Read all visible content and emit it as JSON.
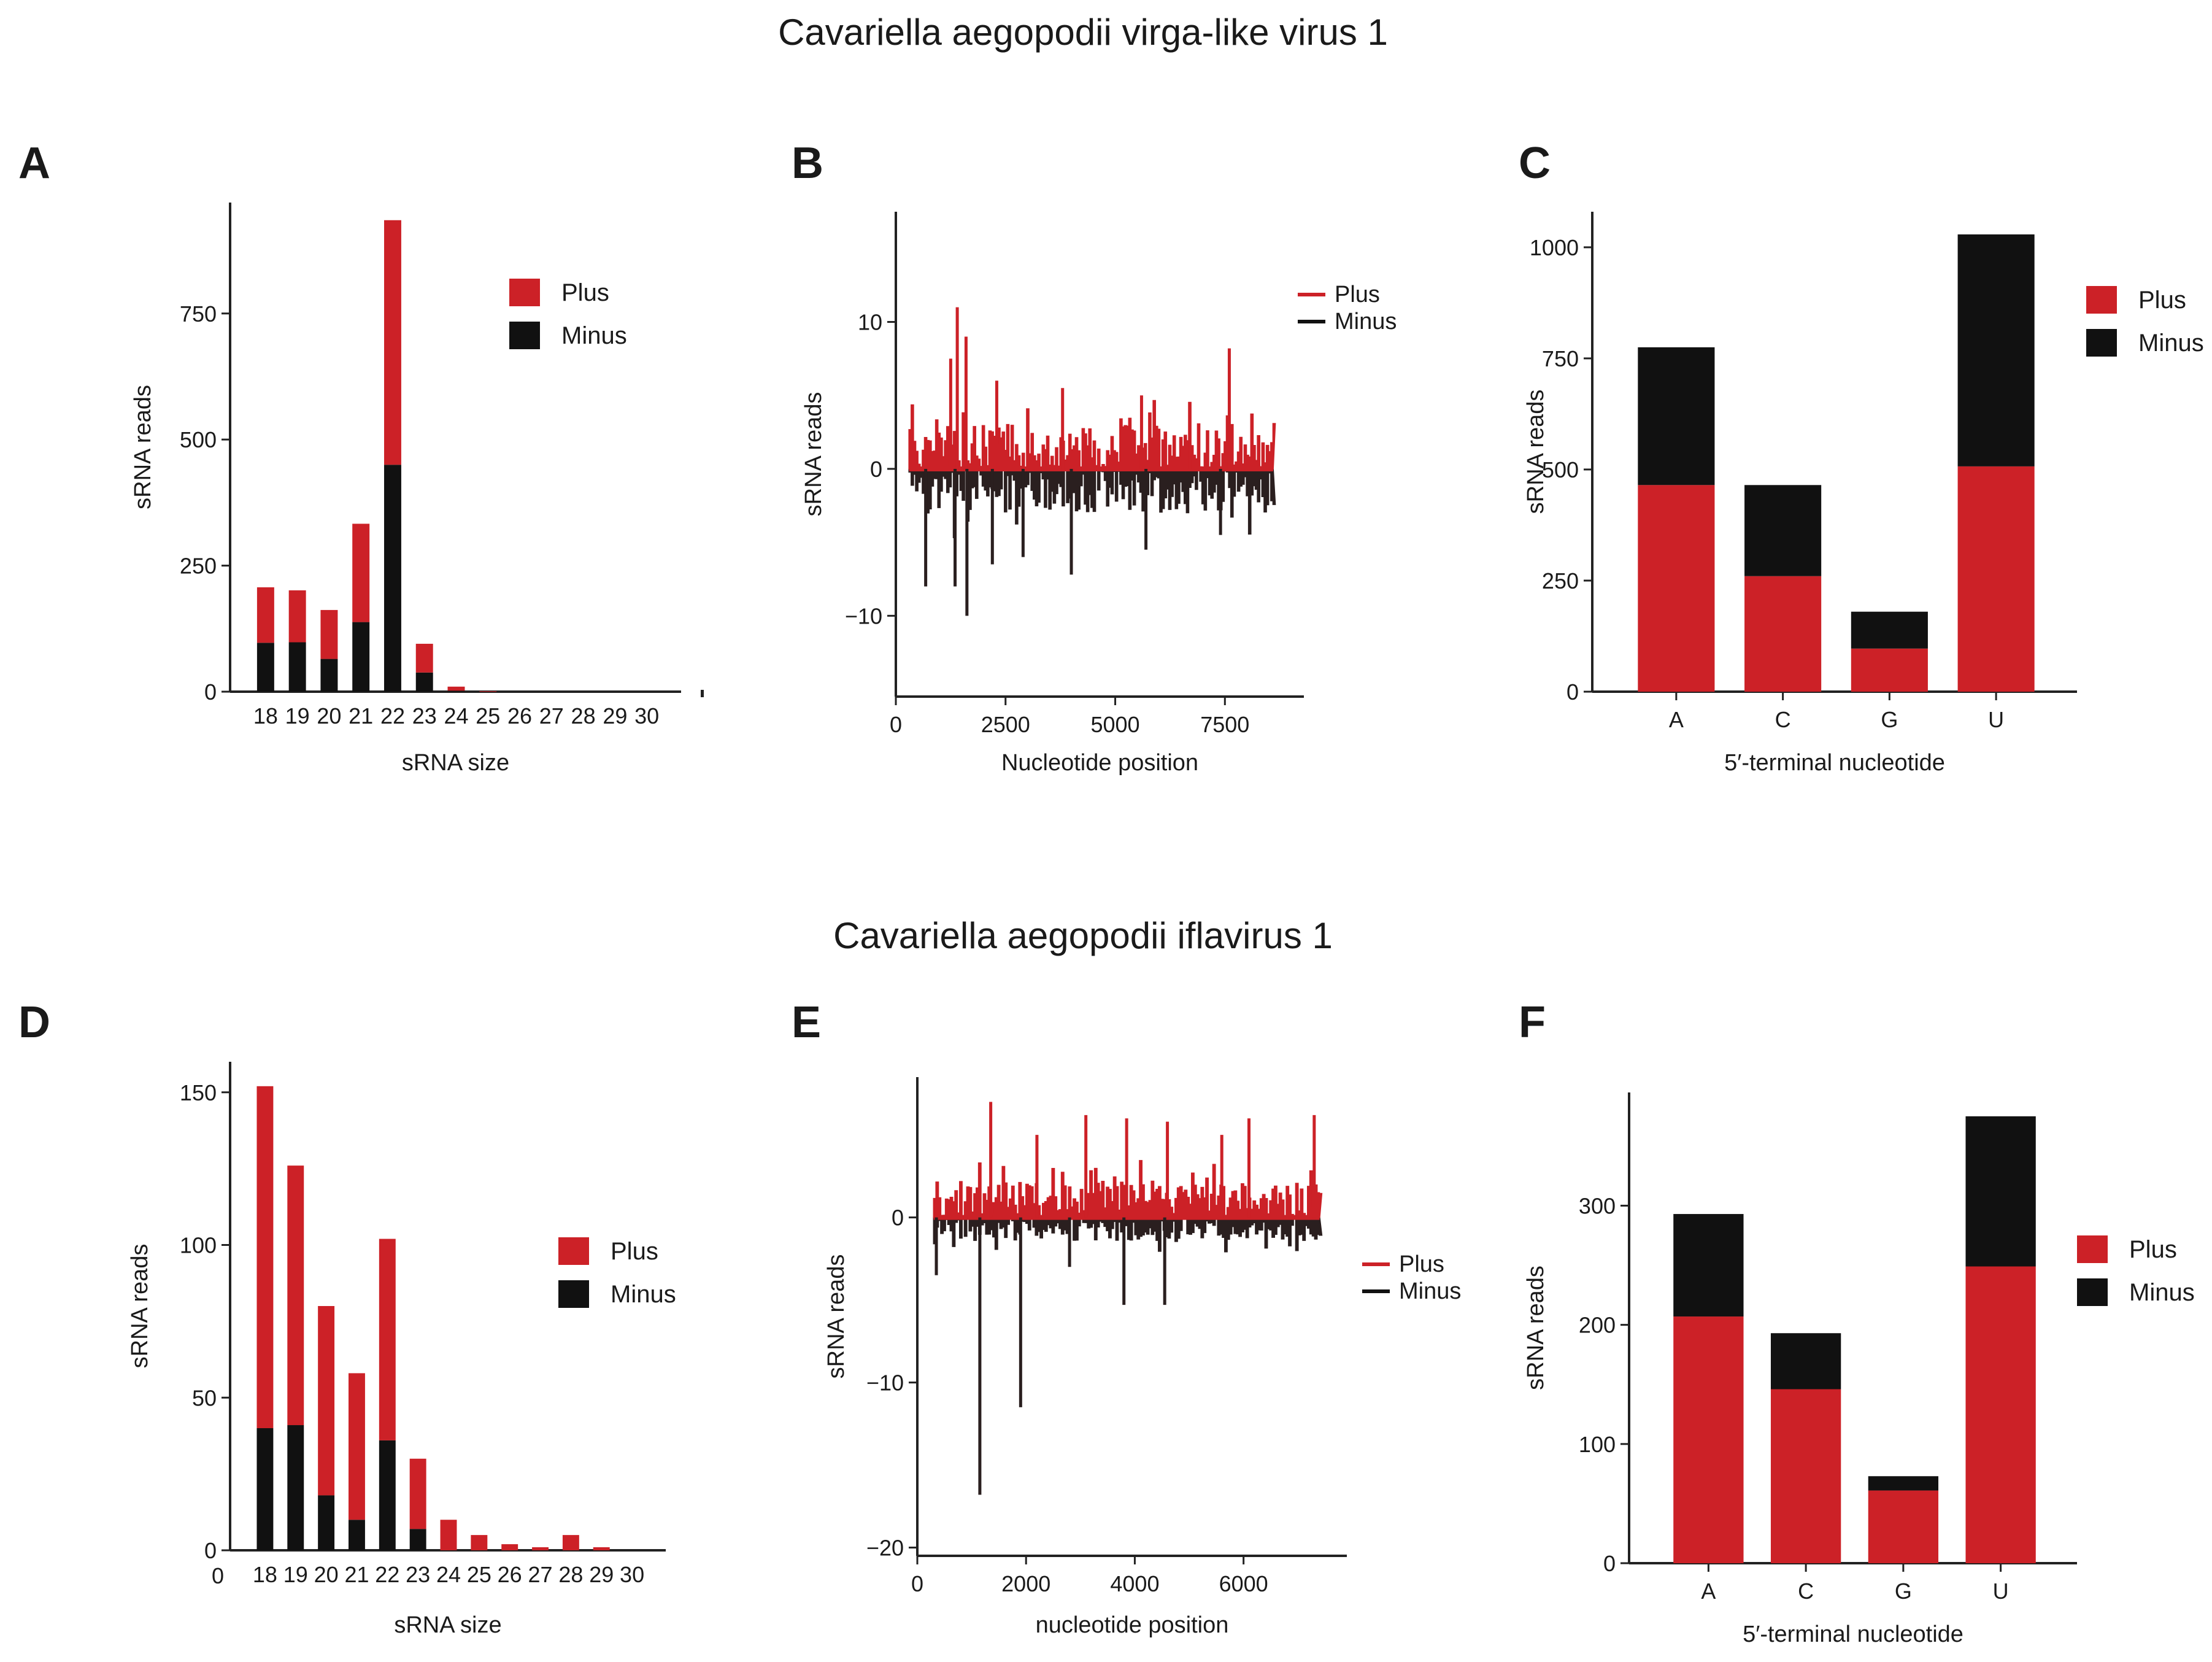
{
  "sections": [
    {
      "title": "Cavariella aegopodii virga-like virus 1"
    },
    {
      "title": "Cavariella aegopodii iflavirus 1"
    }
  ],
  "panels": [
    {
      "label": "A"
    },
    {
      "label": "B"
    },
    {
      "label": "C"
    },
    {
      "label": "D"
    },
    {
      "label": "E"
    },
    {
      "label": "F"
    }
  ],
  "colors": {
    "plus": "#cc2127",
    "minus": "#111111",
    "axis": "#222222"
  },
  "chart_data": [
    {
      "panel": "A",
      "type": "bar",
      "stacked": true,
      "xlabel": "sRNA size",
      "ylabel": "sRNA reads",
      "ylim": [
        0,
        970
      ],
      "yticks": [
        0,
        250,
        500,
        750
      ],
      "categories": [
        "18",
        "19",
        "20",
        "21",
        "22",
        "23",
        "24",
        "25",
        "26",
        "27",
        "28",
        "29",
        "30"
      ],
      "series": [
        {
          "name": "Minus",
          "values": [
            97,
            98,
            65,
            138,
            450,
            38,
            2,
            0,
            0,
            0,
            0,
            0,
            0
          ]
        },
        {
          "name": "Plus",
          "values": [
            110,
            103,
            97,
            195,
            485,
            57,
            8,
            1,
            0,
            0,
            0,
            0,
            0
          ]
        }
      ],
      "legend": {
        "position": "top-right",
        "entries": [
          "Plus",
          "Minus"
        ]
      }
    },
    {
      "panel": "B",
      "type": "bar",
      "mirrored": true,
      "xlabel": "Nucleotide position",
      "ylabel": "sRNA reads",
      "xlim": [
        0,
        9300
      ],
      "xticks": [
        0,
        2500,
        5000,
        7500
      ],
      "ylim": [
        -15.5,
        17.5
      ],
      "yticks": [
        -10,
        0,
        10
      ],
      "ytick_labels": [
        "−10",
        "0",
        "10"
      ],
      "genome_length": 8600,
      "peaks": {
        "plus": [
          [
            1400,
            11
          ],
          [
            1600,
            9
          ],
          [
            1250,
            7.5
          ],
          [
            7600,
            8.2
          ],
          [
            2300,
            6
          ],
          [
            3800,
            5.5
          ],
          [
            5600,
            5
          ],
          [
            6700,
            4.5
          ]
        ],
        "minus": [
          [
            1620,
            -10
          ],
          [
            680,
            -8
          ],
          [
            1350,
            -8
          ],
          [
            2200,
            -6.5
          ],
          [
            4000,
            -7.2
          ],
          [
            5700,
            -5.5
          ],
          [
            2900,
            -6
          ],
          [
            7400,
            -4.5
          ]
        ]
      },
      "typical_amplitude": {
        "plus": 3,
        "minus": 3
      },
      "legend": {
        "position": "top-right",
        "entries": [
          "Plus",
          "Minus"
        ]
      }
    },
    {
      "panel": "C",
      "type": "bar",
      "stacked": true,
      "xlabel": "5′-terminal nucleotide",
      "ylabel": "sRNA reads",
      "ylim": [
        0,
        1080
      ],
      "yticks": [
        0,
        250,
        500,
        750,
        1000
      ],
      "categories": [
        "A",
        "C",
        "G",
        "U"
      ],
      "series": [
        {
          "name": "Plus",
          "values": [
            465,
            260,
            97,
            507
          ]
        },
        {
          "name": "Minus",
          "values": [
            310,
            205,
            83,
            522
          ]
        }
      ],
      "legend": {
        "position": "top-right",
        "entries": [
          "Plus",
          "Minus"
        ]
      }
    },
    {
      "panel": "D",
      "type": "bar",
      "stacked": true,
      "xlabel": "sRNA size",
      "ylabel": "sRNA reads",
      "ylim": [
        0,
        160
      ],
      "yticks": [
        0,
        50,
        100,
        150
      ],
      "categories": [
        "18",
        "19",
        "20",
        "21",
        "22",
        "23",
        "24",
        "25",
        "26",
        "27",
        "28",
        "29",
        "30"
      ],
      "category_labels": [
        "18",
        "19",
        "20",
        "21",
        "22",
        "23",
        "24",
        "25",
        "26",
        "27",
        "28",
        "29",
        "30"
      ],
      "series": [
        {
          "name": "Minus",
          "values": [
            40,
            41,
            18,
            10,
            36,
            7,
            0,
            0,
            0,
            0,
            0,
            0,
            0
          ]
        },
        {
          "name": "Plus",
          "values": [
            112,
            85,
            62,
            48,
            66,
            23,
            10,
            5,
            2,
            1,
            5,
            1,
            0
          ]
        }
      ],
      "legend": {
        "position": "right",
        "entries": [
          "Plus",
          "Minus"
        ]
      }
    },
    {
      "panel": "E",
      "type": "bar",
      "mirrored": true,
      "xlabel": "nucleotide position",
      "ylabel": "sRNA reads",
      "xlim": [
        0,
        7900
      ],
      "xticks": [
        0,
        2000,
        4000,
        6000
      ],
      "ylim": [
        -20.5,
        8.5
      ],
      "yticks": [
        -20,
        -10,
        0
      ],
      "ytick_labels": [
        "−20",
        "−10",
        "0"
      ],
      "genome_length": 7400,
      "peaks": {
        "plus": [
          [
            1350,
            7
          ],
          [
            3100,
            6.2
          ],
          [
            3850,
            6
          ],
          [
            4600,
            5.8
          ],
          [
            6100,
            6
          ],
          [
            7300,
            6.2
          ],
          [
            2200,
            5
          ],
          [
            5600,
            5
          ]
        ],
        "minus": [
          [
            1150,
            -16.8
          ],
          [
            1900,
            -11.5
          ],
          [
            3800,
            -5.3
          ],
          [
            4550,
            -5.3
          ],
          [
            350,
            -3.5
          ],
          [
            2800,
            -3
          ]
        ]
      },
      "typical_amplitude": {
        "plus": 2.2,
        "minus": 1.4
      },
      "legend": {
        "position": "right",
        "entries": [
          "Plus",
          "Minus"
        ]
      }
    },
    {
      "panel": "F",
      "type": "bar",
      "stacked": true,
      "xlabel": "5′-terminal nucleotide",
      "ylabel": "sRNA reads",
      "ylim": [
        0,
        395
      ],
      "yticks": [
        0,
        100,
        200,
        300
      ],
      "categories": [
        "A",
        "C",
        "G",
        "U"
      ],
      "series": [
        {
          "name": "Plus",
          "values": [
            207,
            146,
            61,
            249
          ]
        },
        {
          "name": "Minus",
          "values": [
            86,
            47,
            12,
            126
          ]
        }
      ],
      "legend": {
        "position": "right",
        "entries": [
          "Plus",
          "Minus"
        ]
      }
    }
  ]
}
